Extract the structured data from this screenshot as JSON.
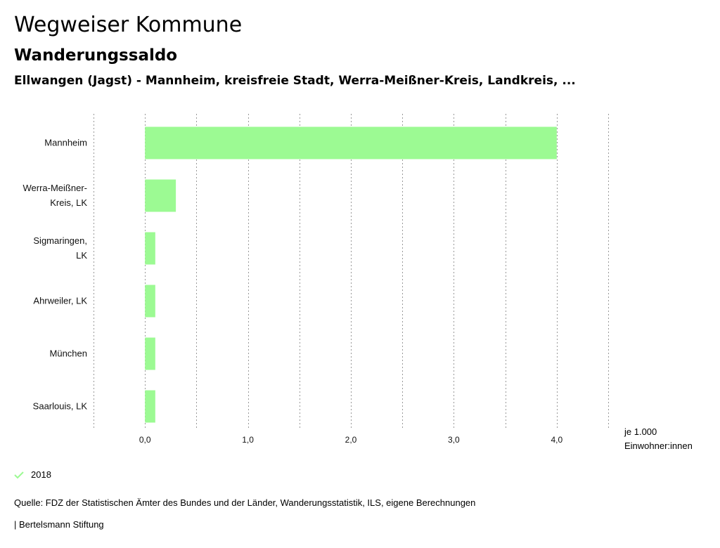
{
  "header": {
    "title": "Wegweiser Kommune",
    "subtitle": "Wanderungssaldo",
    "comparison": "Ellwangen (Jagst) - Mannheim, kreisfreie Stadt, Werra-Meißner-Kreis, Landkreis, ..."
  },
  "chart_data": {
    "type": "bar",
    "orientation": "horizontal",
    "categories": [
      [
        "Mannheim"
      ],
      [
        "Werra-Meißner-",
        "Kreis, LK"
      ],
      [
        "Sigmaringen,",
        "LK"
      ],
      [
        "Ahrweiler, LK"
      ],
      [
        "München"
      ],
      [
        "Saarlouis, LK"
      ]
    ],
    "series": [
      {
        "name": "2018",
        "values": [
          4.0,
          0.3,
          0.1,
          0.1,
          0.1,
          0.1
        ]
      }
    ],
    "xlim": [
      -0.5,
      4.5
    ],
    "ticks": [
      0,
      1,
      2,
      3,
      4
    ],
    "tick_labels": [
      "0,0",
      "1,0",
      "2,0",
      "3,0",
      "4,0"
    ],
    "unit_label": [
      "je 1.000",
      "Einwohner:innen"
    ],
    "grid": true,
    "bar_color": "#9cfa93",
    "grid_color": "#999999"
  },
  "legend": {
    "label": "2018",
    "check_color": "#9cfa93"
  },
  "footer": {
    "source": "Quelle: FDZ der Statistischen Ämter des Bundes und der Länder, Wanderungsstatistik, ILS, eigene Berechnungen",
    "credit": "| Bertelsmann Stiftung"
  }
}
